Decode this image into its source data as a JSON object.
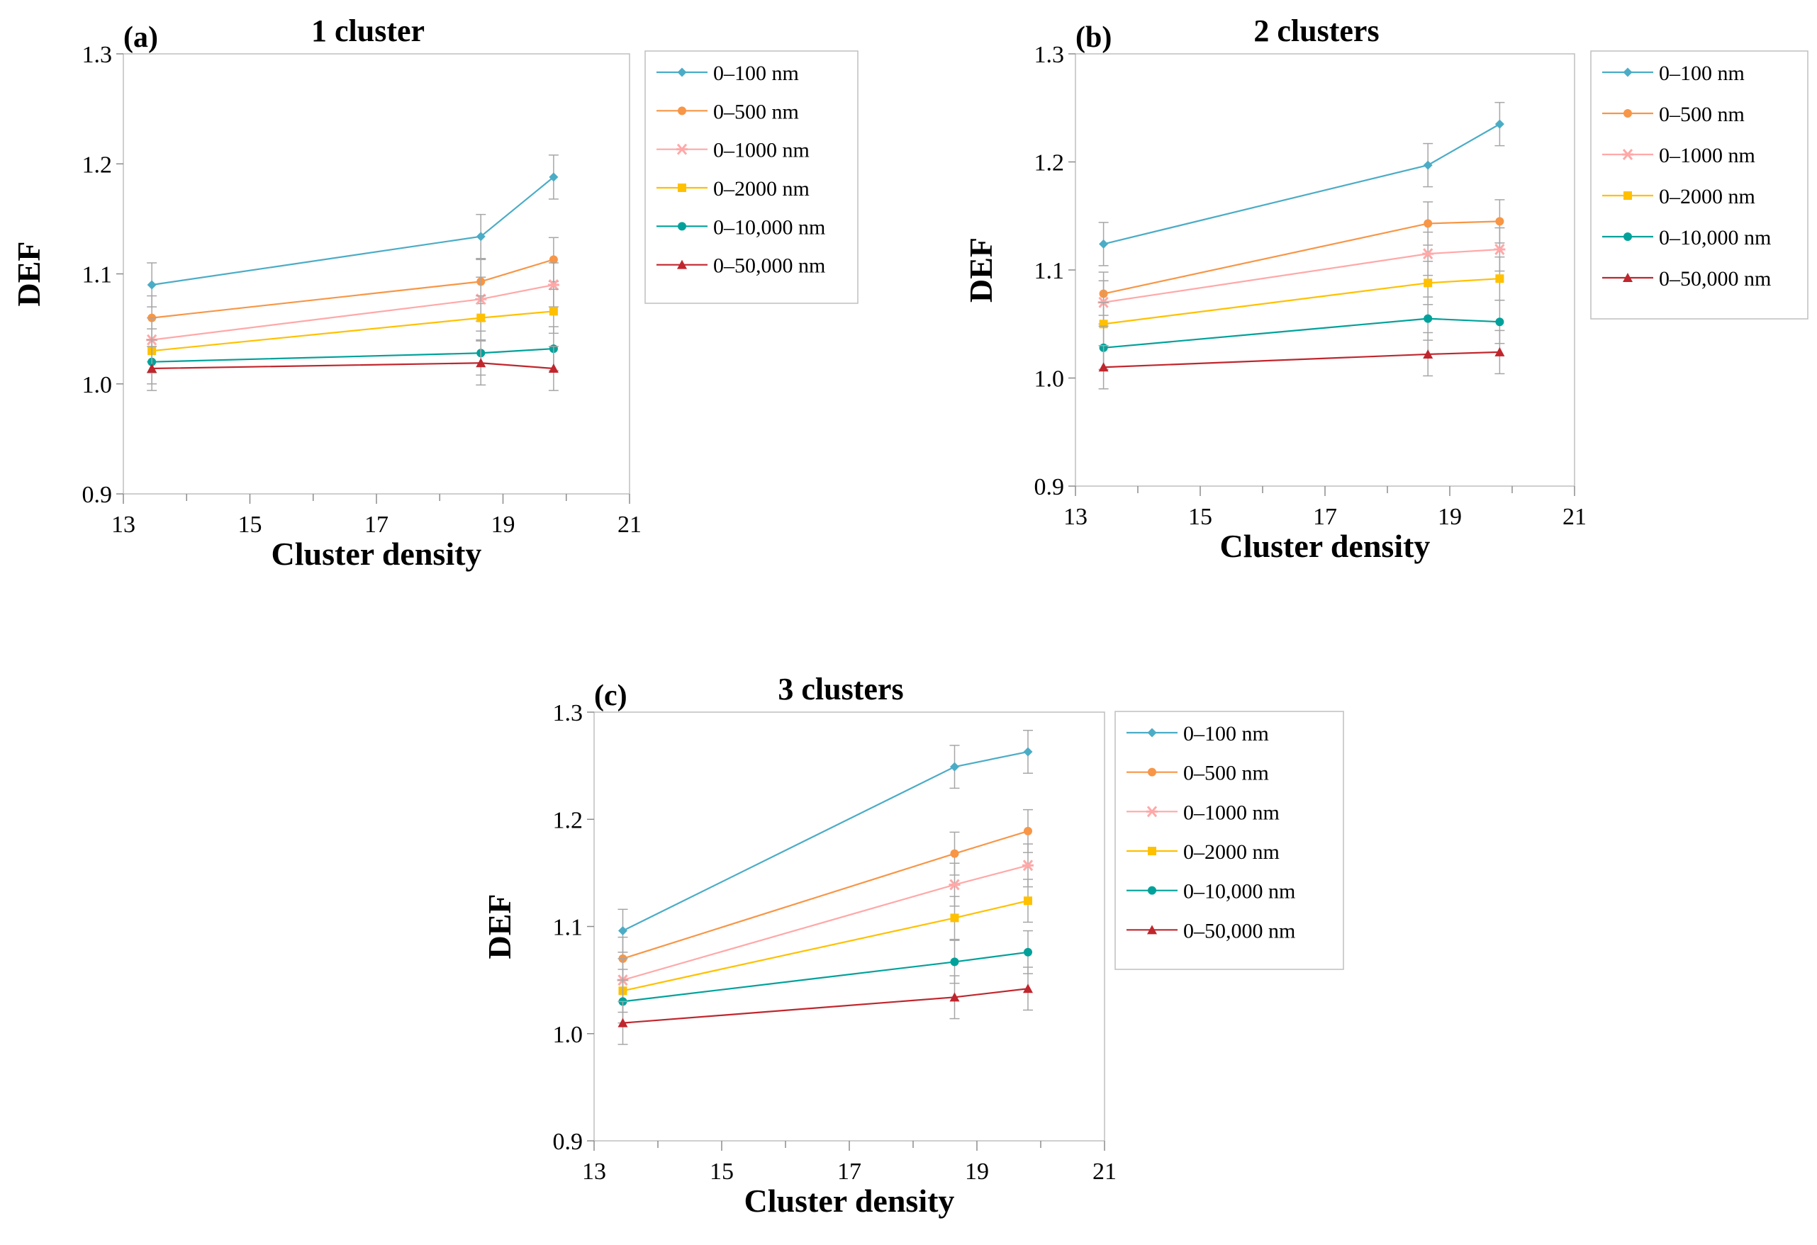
{
  "figure": {
    "series_styles": [
      {
        "name": "0–100  nm",
        "color": "#4BACC6",
        "marker": "diamond"
      },
      {
        "name": "0–500  nm",
        "color": "#F79646",
        "marker": "circle"
      },
      {
        "name": "0–1000  nm",
        "color": "#FFA8A8",
        "marker": "star"
      },
      {
        "name": "0–2000  nm",
        "color": "#FFC000",
        "marker": "square"
      },
      {
        "name": "0–10,000  nm",
        "color": "#00A19A",
        "marker": "circle"
      },
      {
        "name": "0–50,000  nm",
        "color": "#C0262D",
        "marker": "triangle"
      }
    ],
    "errorbar_color": "#A6A6A6",
    "axis_color": "#BFBFBF"
  },
  "chart_data": [
    {
      "type": "line",
      "panel_label": "(a)",
      "title": "1 cluster",
      "xlabel": "Cluster density",
      "ylabel": "DEF",
      "xlim": [
        13,
        21
      ],
      "ylim": [
        0.9,
        1.3
      ],
      "xticks": [
        13,
        15,
        17,
        19,
        21
      ],
      "yticks": [
        0.9,
        1.0,
        1.1,
        1.2,
        1.3
      ],
      "ytick_labels": [
        "0.9",
        "1.0",
        "1.1",
        "1.2",
        "1.3"
      ],
      "x": [
        13.45,
        18.65,
        19.8
      ],
      "error": 0.02,
      "legend_position": "right",
      "series": [
        {
          "name": "0–100  nm",
          "values": [
            1.09,
            1.134,
            1.188
          ]
        },
        {
          "name": "0–500  nm",
          "values": [
            1.06,
            1.093,
            1.113
          ]
        },
        {
          "name": "0–1000  nm",
          "values": [
            1.04,
            1.077,
            1.09
          ]
        },
        {
          "name": "0–2000  nm",
          "values": [
            1.03,
            1.06,
            1.066
          ]
        },
        {
          "name": "0–10,000  nm",
          "values": [
            1.02,
            1.028,
            1.032
          ]
        },
        {
          "name": "0–50,000  nm",
          "values": [
            1.014,
            1.019,
            1.014
          ]
        }
      ]
    },
    {
      "type": "line",
      "panel_label": "(b)",
      "title": "2 clusters",
      "xlabel": "Cluster density",
      "ylabel": "DEF",
      "xlim": [
        13,
        21
      ],
      "ylim": [
        0.9,
        1.3
      ],
      "xticks": [
        13,
        15,
        17,
        19,
        21
      ],
      "yticks": [
        0.9,
        1.0,
        1.1,
        1.2,
        1.3
      ],
      "ytick_labels": [
        "0.9",
        "1.0",
        "1.1",
        "1.2",
        "1.3"
      ],
      "x": [
        13.45,
        18.65,
        19.8
      ],
      "error": 0.02,
      "legend_position": "right",
      "series": [
        {
          "name": "0–100  nm",
          "values": [
            1.124,
            1.197,
            1.235
          ]
        },
        {
          "name": "0–500  nm",
          "values": [
            1.078,
            1.143,
            1.145
          ]
        },
        {
          "name": "0–1000  nm",
          "values": [
            1.07,
            1.115,
            1.119
          ]
        },
        {
          "name": "0–2000  nm",
          "values": [
            1.05,
            1.088,
            1.092
          ]
        },
        {
          "name": "0–10,000  nm",
          "values": [
            1.028,
            1.055,
            1.052
          ]
        },
        {
          "name": "0–50,000  nm",
          "values": [
            1.01,
            1.022,
            1.024
          ]
        }
      ]
    },
    {
      "type": "line",
      "panel_label": "(c)",
      "title": "3 clusters",
      "xlabel": "Cluster density",
      "ylabel": "DEF",
      "xlim": [
        13,
        21
      ],
      "ylim": [
        0.9,
        1.3
      ],
      "xticks": [
        13,
        15,
        17,
        19,
        21
      ],
      "yticks": [
        0.9,
        1.0,
        1.1,
        1.2,
        1.3
      ],
      "ytick_labels": [
        "0.9",
        "1.0",
        "1.1",
        "1.2",
        "1.3"
      ],
      "x": [
        13.45,
        18.65,
        19.8
      ],
      "error": 0.02,
      "legend_position": "right",
      "series": [
        {
          "name": "0–100  nm",
          "values": [
            1.096,
            1.249,
            1.263
          ]
        },
        {
          "name": "0–500  nm",
          "values": [
            1.07,
            1.168,
            1.189
          ]
        },
        {
          "name": "0–1000  nm",
          "values": [
            1.05,
            1.139,
            1.157
          ]
        },
        {
          "name": "0–2000  nm",
          "values": [
            1.04,
            1.108,
            1.124
          ]
        },
        {
          "name": "0–10,000  nm",
          "values": [
            1.03,
            1.067,
            1.076
          ]
        },
        {
          "name": "0–50,000  nm",
          "values": [
            1.01,
            1.034,
            1.042
          ]
        }
      ]
    }
  ]
}
